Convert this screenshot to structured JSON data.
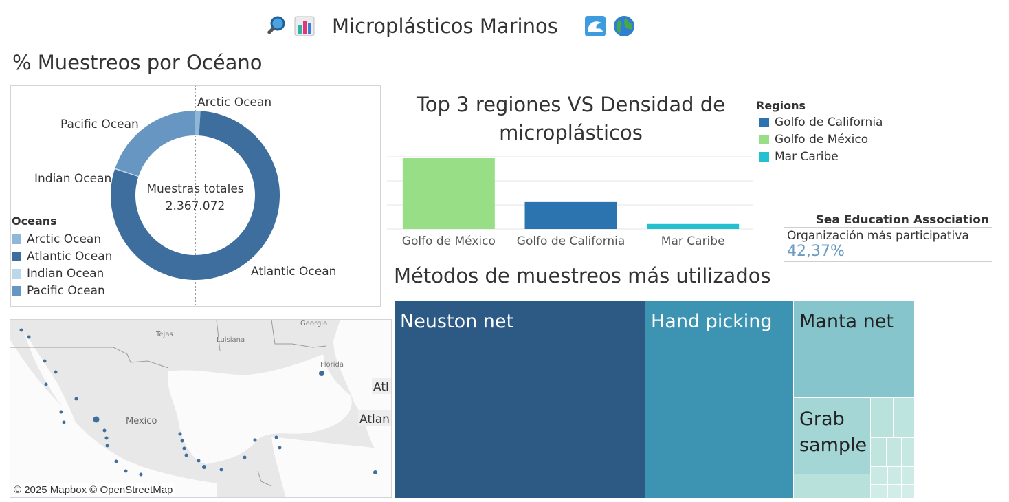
{
  "header": {
    "title": "Microplásticos Marinos"
  },
  "donut": {
    "title": "% Muestreos por Océano",
    "center_label": "Muestras totales",
    "center_value": "2.367.072",
    "legend_title": "Oceans",
    "colors": {
      "Arctic Ocean": "#8fb8d8",
      "Atlantic Ocean": "#3d6e9e",
      "Indian Ocean": "#bcd6ec",
      "Pacific Ocean": "#6796c2"
    }
  },
  "bars": {
    "title_line1": "Top 3 regiones VS Densidad de",
    "title_line2": "microplásticos",
    "legend_title": "Regions",
    "legend": [
      {
        "name": "Golfo de California",
        "color": "#2c74b0"
      },
      {
        "name": "Golfo de México",
        "color": "#97de86"
      },
      {
        "name": "Mar Caribe",
        "color": "#25c0cf"
      }
    ]
  },
  "kpi": {
    "org": "Sea Education Association",
    "label": "Organización más participativa",
    "value": "42,37%"
  },
  "map": {
    "labels": {
      "georgia": "Georgia",
      "tejas": "Tejas",
      "luisiana": "Luisiana",
      "florida": "Florida",
      "mexico": "Mexico",
      "atl": "Atl",
      "atlan": "Atlan"
    },
    "attribution": "© 2025 Mapbox © OpenStreetMap"
  },
  "treemap": {
    "title": "Métodos de muestreos más utilizados",
    "cells": [
      {
        "label": "Neuston net",
        "color": "#2d5a85",
        "text_color": "#ffffff"
      },
      {
        "label": "Hand picking",
        "color": "#3c93b2",
        "text_color": "#ffffff"
      },
      {
        "label": "Manta net",
        "color": "#86c5cb",
        "text_color": "#222222"
      },
      {
        "label": "Grab sample",
        "label_line1": "Grab",
        "label_line2": "sample",
        "color": "#a3d6d4",
        "text_color": "#222222"
      }
    ]
  },
  "chart_data": [
    {
      "type": "pie",
      "title": "% Muestreos por Océano",
      "labels": [
        "Arctic Ocean",
        "Atlantic Ocean",
        "Indian Ocean",
        "Pacific Ocean"
      ],
      "values": [
        1,
        79,
        0.2,
        19.8
      ]
    },
    {
      "type": "bar",
      "title": "Top 3 regiones VS Densidad de microplásticos",
      "categories": [
        "Golfo de México",
        "Golfo de California",
        "Mar Caribe"
      ],
      "values": [
        100,
        38,
        7
      ],
      "ylim": [
        0,
        100
      ]
    }
  ]
}
